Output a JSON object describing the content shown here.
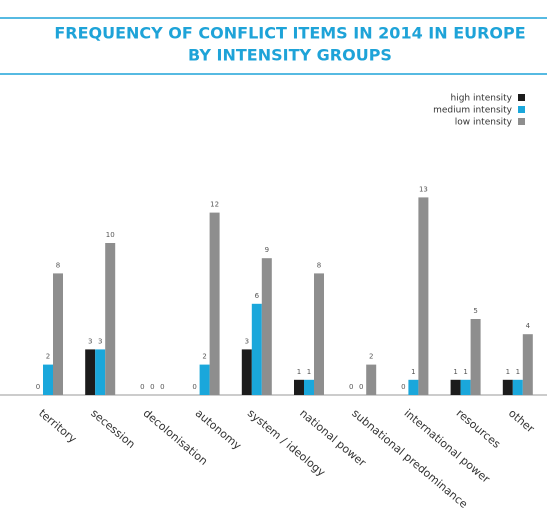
{
  "chart_data": {
    "type": "bar",
    "title": [
      "FREQUENCY OF CONFLICT ITEMS IN 2014 IN EUROPE",
      "BY INTENSITY GROUPS"
    ],
    "categories": [
      "territory",
      "secession",
      "decolonisation",
      "autonomy",
      "system / ideology",
      "national power",
      "subnational predominance",
      "international power",
      "resources",
      "other"
    ],
    "series": [
      {
        "name": "high intensity",
        "color": "#1c1c1c",
        "values": [
          0,
          3,
          0,
          0,
          3,
          1,
          0,
          0,
          1,
          1
        ]
      },
      {
        "name": "medium intensity",
        "color": "#1aa7db",
        "values": [
          2,
          3,
          0,
          2,
          6,
          1,
          0,
          1,
          1,
          1
        ]
      },
      {
        "name": "low intensity",
        "color": "#8e8e8e",
        "values": [
          8,
          10,
          0,
          12,
          9,
          8,
          2,
          13,
          5,
          4
        ]
      }
    ],
    "legend": "top-right"
  }
}
